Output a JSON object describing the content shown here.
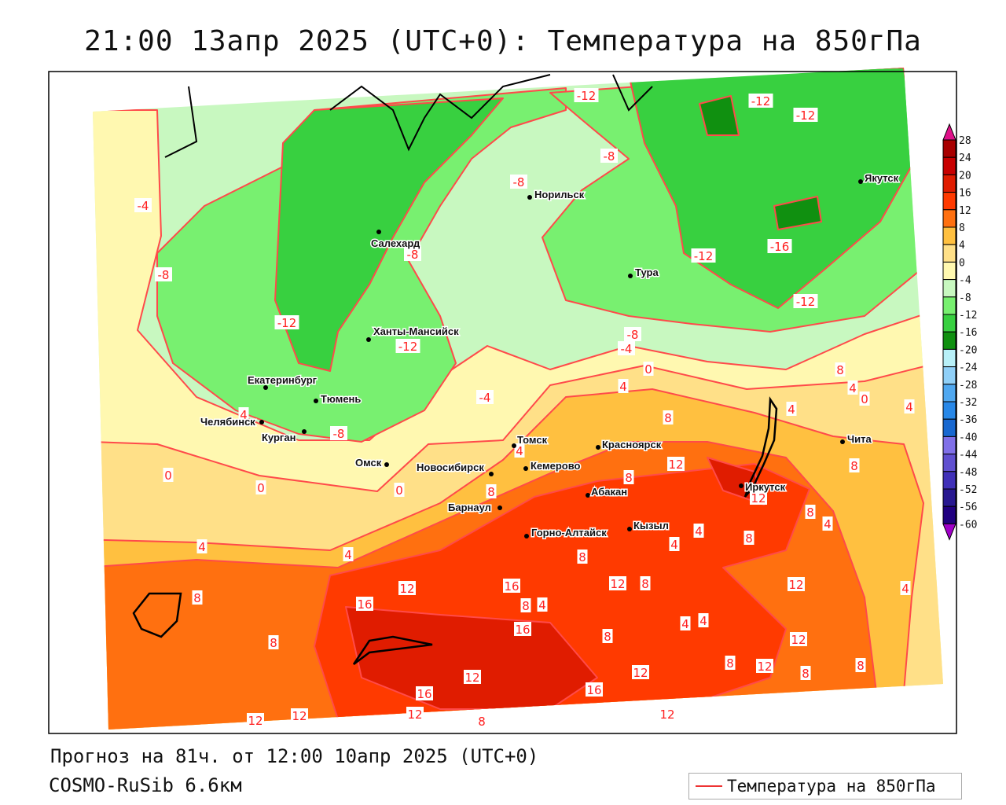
{
  "title": "21:00 13апр 2025 (UTC+0): Температура на 850гПа",
  "footer": {
    "forecast": "Прогноз на 81ч. от 12:00 10апр 2025 (UTC+0)",
    "model": "COSMO-RuSib 6.6км"
  },
  "legend": {
    "label": "Температура на 850гПа",
    "line_color": "#ee3333"
  },
  "colorbar": {
    "ticks": [
      "28",
      "24",
      "20",
      "16",
      "12",
      "8",
      "4",
      "0",
      "-4",
      "-8",
      "-12",
      "-16",
      "-20",
      "-24",
      "-28",
      "-32",
      "-36",
      "-40",
      "-44",
      "-48",
      "-52",
      "-56",
      "-60"
    ],
    "colors": [
      "#a80000",
      "#c80000",
      "#e01c00",
      "#ff3a00",
      "#ff7010",
      "#ffc040",
      "#ffe088",
      "#fff8b0",
      "#c8f8c0",
      "#78f070",
      "#38d040",
      "#109010",
      "#b8f0f8",
      "#90d0f8",
      "#50a8f0",
      "#2888e8",
      "#1868d0",
      "#8070e8",
      "#6050d0",
      "#4030b8",
      "#281890",
      "#200080"
    ],
    "over_color": "#e0108a",
    "under_color": "#a000c8"
  },
  "cities": [
    "Салехард",
    "Норильск",
    "Якутск",
    "Тура",
    "Ханты-Мансийск",
    "Екатеринбург",
    "Тюмень",
    "Челябинск",
    "Курган",
    "Омск",
    "Новосибирск",
    "Томск",
    "Кемерово",
    "Красноярск",
    "Абакан",
    "Иркутск",
    "Чита",
    "Барнаул",
    "Горно-Алтайск",
    "Кызыл"
  ],
  "contour_labels": [
    "-12",
    "-12",
    "-12",
    "-8",
    "-8",
    "-4",
    "-8",
    "-8",
    "-12",
    "-16",
    "-12",
    "-12",
    "-12",
    "-8",
    "-4",
    "0",
    "4",
    "-4",
    "8",
    "4",
    "0",
    "4",
    "4",
    "8",
    "-8",
    "4",
    "4",
    "12",
    "8",
    "0",
    "0",
    "0",
    "8",
    "8",
    "12",
    "8",
    "4",
    "4",
    "8",
    "4",
    "4",
    "4",
    "8",
    "12",
    "12",
    "8",
    "12",
    "4",
    "16",
    "16",
    "8",
    "8",
    "4",
    "16",
    "8",
    "4",
    "4",
    "12",
    "8",
    "8",
    "12",
    "8",
    "8",
    "12",
    "12",
    "16",
    "16",
    "12",
    "8",
    "12",
    "12",
    "12"
  ]
}
